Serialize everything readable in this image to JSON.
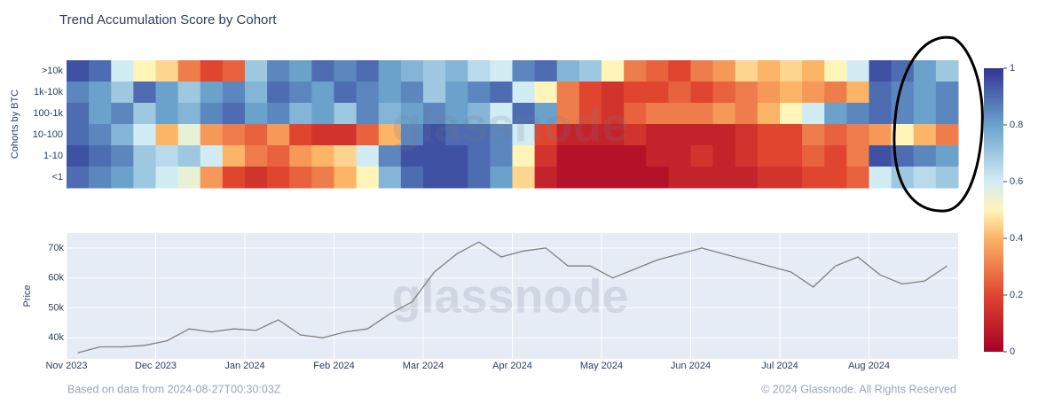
{
  "chart_data": [
    {
      "type": "heatmap",
      "title": "Trend Accumulation Score by Cohort",
      "y_label": "Cohorts by BTC",
      "rows": [
        ">10k",
        "1k-10k",
        "100-1k",
        "10-100",
        "1-10",
        "<1"
      ],
      "z": [
        [
          0.95,
          0.9,
          0.6,
          0.5,
          0.45,
          0.3,
          0.2,
          0.25,
          0.7,
          0.85,
          0.8,
          0.9,
          0.85,
          0.9,
          0.8,
          0.75,
          0.7,
          0.75,
          0.65,
          0.6,
          0.85,
          0.9,
          0.75,
          0.7,
          0.5,
          0.3,
          0.25,
          0.2,
          0.3,
          0.35,
          0.45,
          0.4,
          0.45,
          0.4,
          0.5,
          0.6,
          0.95,
          0.9,
          0.8,
          0.7
        ],
        [
          0.85,
          0.8,
          0.7,
          0.9,
          0.8,
          0.7,
          0.8,
          0.85,
          0.75,
          0.9,
          0.85,
          0.8,
          0.9,
          0.85,
          0.8,
          0.85,
          0.7,
          0.8,
          0.85,
          0.9,
          0.6,
          0.5,
          0.3,
          0.2,
          0.15,
          0.2,
          0.2,
          0.25,
          0.2,
          0.25,
          0.3,
          0.35,
          0.4,
          0.35,
          0.3,
          0.4,
          0.9,
          0.85,
          0.8,
          0.85
        ],
        [
          0.9,
          0.8,
          0.85,
          0.7,
          0.8,
          0.75,
          0.85,
          0.9,
          0.8,
          0.85,
          0.75,
          0.8,
          0.7,
          0.85,
          0.75,
          0.8,
          0.85,
          0.8,
          0.75,
          0.6,
          0.9,
          0.8,
          0.3,
          0.2,
          0.15,
          0.25,
          0.3,
          0.3,
          0.3,
          0.35,
          0.3,
          0.4,
          0.5,
          0.6,
          0.8,
          0.85,
          0.9,
          0.85,
          0.8,
          0.85
        ],
        [
          0.9,
          0.85,
          0.75,
          0.6,
          0.4,
          0.55,
          0.35,
          0.3,
          0.25,
          0.35,
          0.2,
          0.15,
          0.15,
          0.25,
          0.4,
          0.85,
          0.95,
          0.9,
          0.9,
          0.85,
          0.6,
          0.2,
          0.1,
          0.1,
          0.1,
          0.15,
          0.1,
          0.1,
          0.1,
          0.1,
          0.15,
          0.2,
          0.2,
          0.3,
          0.25,
          0.3,
          0.35,
          0.5,
          0.4,
          0.3
        ],
        [
          0.95,
          0.9,
          0.85,
          0.7,
          0.65,
          0.7,
          0.6,
          0.4,
          0.3,
          0.25,
          0.35,
          0.4,
          0.45,
          0.6,
          0.85,
          0.95,
          0.95,
          0.95,
          0.9,
          0.85,
          0.5,
          0.15,
          0.05,
          0.05,
          0.05,
          0.05,
          0.1,
          0.1,
          0.15,
          0.1,
          0.15,
          0.2,
          0.2,
          0.25,
          0.2,
          0.3,
          0.95,
          0.9,
          0.85,
          0.8
        ],
        [
          0.9,
          0.85,
          0.8,
          0.7,
          0.6,
          0.55,
          0.35,
          0.2,
          0.15,
          0.2,
          0.25,
          0.3,
          0.4,
          0.5,
          0.75,
          0.9,
          0.95,
          0.95,
          0.9,
          0.8,
          0.45,
          0.1,
          0.05,
          0.05,
          0.05,
          0.05,
          0.05,
          0.1,
          0.1,
          0.1,
          0.1,
          0.15,
          0.15,
          0.2,
          0.2,
          0.25,
          0.6,
          0.7,
          0.65,
          0.7
        ]
      ],
      "zlim": [
        0,
        1
      ],
      "zticks": [
        0,
        0.2,
        0.4,
        0.6,
        0.8,
        1
      ],
      "colorscale": [
        [
          0,
          "#a50026"
        ],
        [
          0.2,
          "#e0462f"
        ],
        [
          0.4,
          "#fcb466"
        ],
        [
          0.5,
          "#fff5b8"
        ],
        [
          0.6,
          "#d2ecf4"
        ],
        [
          0.8,
          "#6aa2cc"
        ],
        [
          1,
          "#313695"
        ]
      ],
      "watermark": "glassnode"
    },
    {
      "type": "line",
      "y_label": "Price",
      "color": "#808080",
      "categories": [
        "Nov 2023",
        null,
        null,
        null,
        "Dec 2023",
        null,
        null,
        null,
        "Jan 2024",
        null,
        null,
        null,
        "Feb 2024",
        null,
        null,
        null,
        "Mar 2024",
        null,
        null,
        null,
        "Apr 2024",
        null,
        null,
        null,
        "May 2024",
        null,
        null,
        null,
        "Jun 2024",
        null,
        null,
        null,
        "Jul 2024",
        null,
        null,
        null,
        "Aug 2024",
        null,
        null,
        null
      ],
      "values": [
        35000,
        37000,
        37000,
        37500,
        39000,
        43000,
        42000,
        43000,
        42500,
        46000,
        41000,
        40000,
        42000,
        43000,
        48000,
        52000,
        62000,
        68000,
        72000,
        67000,
        69000,
        70000,
        64000,
        64000,
        60000,
        63000,
        66000,
        68000,
        70000,
        68000,
        66000,
        64000,
        62000,
        57000,
        64000,
        67000,
        61000,
        58000,
        59000,
        64000
      ],
      "ylim": [
        33000,
        75000
      ],
      "yticks": [
        {
          "value": 40000,
          "label": "40k"
        },
        {
          "value": 50000,
          "label": "50k"
        },
        {
          "value": 60000,
          "label": "60k"
        },
        {
          "value": 70000,
          "label": "70k"
        }
      ],
      "grid": true,
      "watermark": "glassnode"
    }
  ],
  "footer": {
    "source": "Based on data from 2024-08-27T00:30:03Z",
    "copyright": "© 2024 Glassnode. All Rights Reserved"
  }
}
